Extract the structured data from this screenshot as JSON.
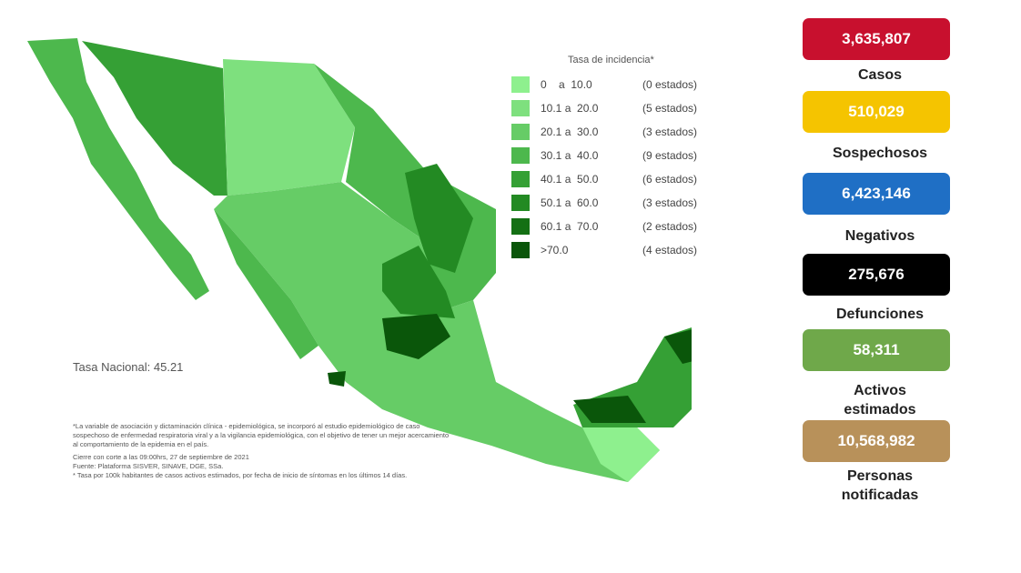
{
  "legend": {
    "title": "Tasa de incidencia*",
    "items": [
      {
        "range": "0    a  10.0",
        "count": "(0 estados)",
        "color": "#8ef08e"
      },
      {
        "range": "10.1 a  20.0",
        "count": "(5 estados)",
        "color": "#7ee07e"
      },
      {
        "range": "20.1 a  30.0",
        "count": "(3 estados)",
        "color": "#66cc66"
      },
      {
        "range": "30.1 a  40.0",
        "count": "(9 estados)",
        "color": "#4db84d"
      },
      {
        "range": "40.1 a  50.0",
        "count": "(6 estados)",
        "color": "#35a035"
      },
      {
        "range": "50.1 a  60.0",
        "count": "(3 estados)",
        "color": "#238a23"
      },
      {
        "range": "60.1 a  70.0",
        "count": "(2 estados)",
        "color": "#147014"
      },
      {
        "range": ">70.0",
        "count": "(4 estados)",
        "color": "#0a560a"
      }
    ]
  },
  "national_rate": "Tasa Nacional: 45.21",
  "footnotes": [
    "*La variable de asociación y dictaminación clínica - epidemiológica, se incorporó al estudio epidemiológico de caso sospechoso de enfermedad respiratoria viral y a la vigilancia epidemiológica, con el objetivo de tener un mejor acercamiento al comportamiento de la epidemia en el país.",
    "Cierre con corte a las 09:00hrs, 27 de septiembre de 2021",
    "Fuente: Plataforma SISVER, SINAVE, DGE, SSa.",
    "* Tasa por 100k habitantes de casos activos estimados, por fecha de inicio de síntomas en los últimos 14 días."
  ],
  "stats": [
    {
      "value": "3,635,807",
      "label": "Casos",
      "color": "#c8102e"
    },
    {
      "value": "510,029",
      "label": "Sospechosos",
      "color": "#f5c400"
    },
    {
      "value": "6,423,146",
      "label": "Negativos",
      "color": "#1f6fc5"
    },
    {
      "value": "275,676",
      "label": "Defunciones",
      "color": "#000000"
    },
    {
      "value": "58,311",
      "label": "Activos estimados",
      "color": "#6fa84a"
    },
    {
      "value": "10,568,982",
      "label": "Personas notificadas",
      "color": "#b8915a"
    }
  ]
}
